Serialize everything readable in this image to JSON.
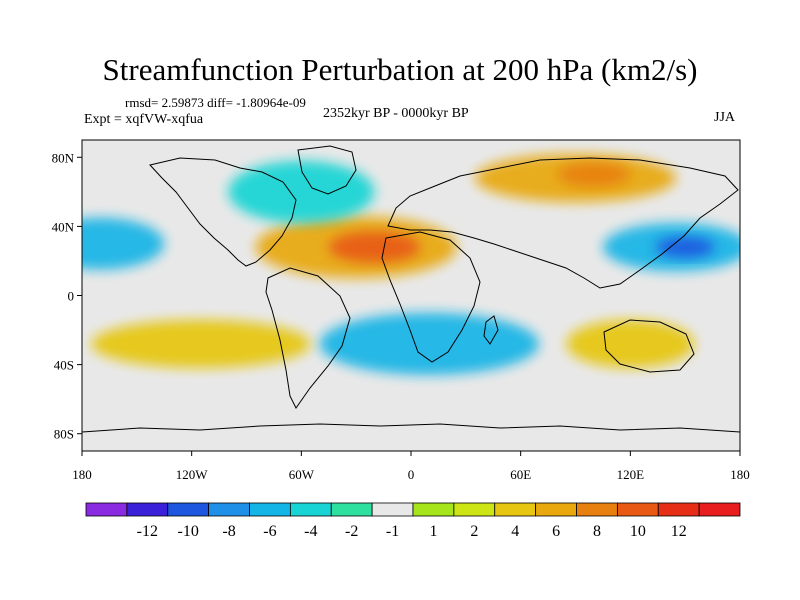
{
  "chart_data": {
    "type": "heatmap",
    "title": "Streamfunction Perturbation at 200 hPa (km2/s)",
    "stats_line": "rmsd= 2.59873 diff= -1.80964e-09",
    "experiment": "Expt = xqfVW-xqfua",
    "period": "2352kyr BP - 0000kyr BP",
    "season": "JJA",
    "x_axis": {
      "range": [
        -180,
        180
      ],
      "ticks": [
        {
          "value": -180,
          "label": "180"
        },
        {
          "value": -120,
          "label": "120W"
        },
        {
          "value": -60,
          "label": "60W"
        },
        {
          "value": 0,
          "label": "0"
        },
        {
          "value": 60,
          "label": "60E"
        },
        {
          "value": 120,
          "label": "120E"
        },
        {
          "value": 180,
          "label": "180"
        }
      ]
    },
    "y_axis": {
      "range": [
        -90,
        90
      ],
      "ticks": [
        {
          "value": 80,
          "label": "80N"
        },
        {
          "value": 40,
          "label": "40N"
        },
        {
          "value": 0,
          "label": "0"
        },
        {
          "value": -40,
          "label": "40S"
        },
        {
          "value": -80,
          "label": "80S"
        }
      ]
    },
    "colorbar": {
      "colors": [
        "#8a2be2",
        "#3a20d8",
        "#1e56e0",
        "#1e90e8",
        "#13b4e6",
        "#19d4d4",
        "#2ee0a0",
        "#e8e8e8",
        "#a6e41c",
        "#cde415",
        "#e6c610",
        "#e8a80e",
        "#e88010",
        "#e85a14",
        "#e62e16",
        "#e81e1e"
      ],
      "labels": [
        "-12",
        "-10",
        "-8",
        "-6",
        "-4",
        "-2",
        "-1",
        "1",
        "2",
        "4",
        "6",
        "8",
        "10",
        "12"
      ]
    },
    "anomalies": [
      {
        "lon": -30,
        "lat": 28,
        "rlon": 55,
        "rlat": 18,
        "level": 11
      },
      {
        "lon": -20,
        "lat": 28,
        "rlon": 25,
        "rlat": 9,
        "level": 13
      },
      {
        "lon": 90,
        "lat": 68,
        "rlon": 55,
        "rlat": 14,
        "level": 11
      },
      {
        "lon": 100,
        "lat": 70,
        "rlon": 20,
        "rlat": 7,
        "level": 12
      },
      {
        "lon": 145,
        "lat": 28,
        "rlon": 40,
        "rlat": 14,
        "level": 4
      },
      {
        "lon": 150,
        "lat": 28,
        "rlon": 16,
        "rlat": 6,
        "level": 2
      },
      {
        "lon": -170,
        "lat": 30,
        "rlon": 35,
        "rlat": 15,
        "level": 4
      },
      {
        "lon": 10,
        "lat": -28,
        "rlon": 60,
        "rlat": 18,
        "level": 4
      },
      {
        "lon": -60,
        "lat": 60,
        "rlon": 40,
        "rlat": 18,
        "level": 5
      },
      {
        "lon": -115,
        "lat": -28,
        "rlon": 60,
        "rlat": 14,
        "level": 10
      },
      {
        "lon": 120,
        "lat": -28,
        "rlon": 35,
        "rlat": 14,
        "level": 10
      }
    ]
  }
}
